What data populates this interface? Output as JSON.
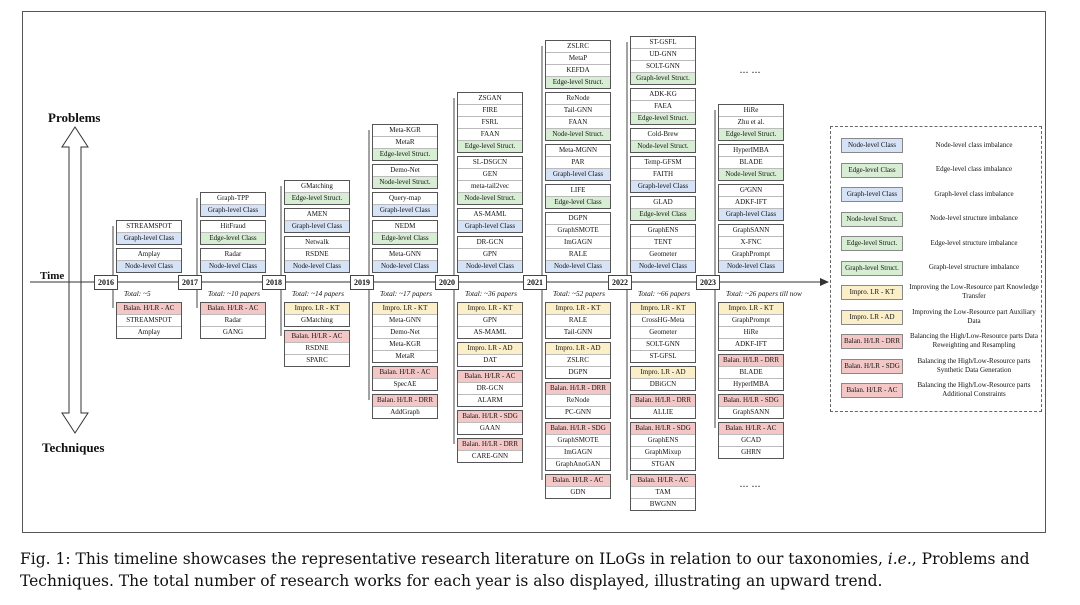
{
  "labels": {
    "problems": "Problems",
    "techniques": "Techniques",
    "time": "Time"
  },
  "caption": {
    "part1": "Fig. 1: This timeline showcases the representative research literature on ILoGs in relation to our taxonomies, ",
    "ie": "i.e.",
    "part2": ", Problems and Techniques. The total number of research works for each year is also displayed, illustrating an upward trend."
  },
  "ellipsis": "... ...",
  "years": [
    {
      "year": "2016",
      "total": "Total: ~5",
      "problems": [
        {
          "type": "graph",
          "label": "Graph-level Class",
          "papers": [
            "STREAMSPOT"
          ]
        },
        {
          "type": "node",
          "label": "Node-level Class",
          "papers": [
            "Amplay"
          ]
        }
      ],
      "techniques": [
        {
          "type": "ac",
          "label": "Balan. H/LR - AC",
          "papers": [
            "STREAMSPOT",
            "Amplay"
          ]
        }
      ]
    },
    {
      "year": "2017",
      "total": "Total: ~10 papers",
      "problems": [
        {
          "type": "graph",
          "label": "Graph-level Class",
          "papers": [
            "Graph-TPP"
          ]
        },
        {
          "type": "edge",
          "label": "Edge-level Class",
          "papers": [
            "HitFraud"
          ]
        },
        {
          "type": "node",
          "label": "Node-level Class",
          "papers": [
            "Radar"
          ]
        }
      ],
      "techniques": [
        {
          "type": "ac",
          "label": "Balan. H/LR - AC",
          "papers": [
            "Radar",
            "GANG"
          ]
        }
      ]
    },
    {
      "year": "2018",
      "total": "Total: ~14 papers",
      "problems": [
        {
          "type": "es",
          "label": "Edge-level Struct.",
          "papers": [
            "GMatching"
          ]
        },
        {
          "type": "graph",
          "label": "Graph-level Class",
          "papers": [
            "AMEN"
          ]
        },
        {
          "type": "node",
          "label": "Node-level Class",
          "papers": [
            "Netwalk",
            "RSDNE"
          ]
        }
      ],
      "techniques": [
        {
          "type": "kt",
          "label": "Impro. LR - KT",
          "papers": [
            "GMatching"
          ]
        },
        {
          "type": "ac",
          "label": "Balan. H/LR - AC",
          "papers": [
            "RSDNE",
            "SPARC"
          ]
        }
      ]
    },
    {
      "year": "2019",
      "total": "Total: ~17 papers",
      "problems": [
        {
          "type": "es",
          "label": "Edge-level Struct.",
          "papers": [
            "Meta-KGR",
            "MetaR"
          ]
        },
        {
          "type": "ns",
          "label": "Node-level Struct.",
          "papers": [
            "Demo-Net"
          ]
        },
        {
          "type": "graph",
          "label": "Graph-level Class",
          "papers": [
            "Query-map"
          ]
        },
        {
          "type": "edge",
          "label": "Edge-level Class",
          "papers": [
            "NEDM"
          ]
        },
        {
          "type": "node",
          "label": "Node-level Class",
          "papers": [
            "Meta-GNN"
          ]
        }
      ],
      "techniques": [
        {
          "type": "kt",
          "label": "Impro. LR - KT",
          "papers": [
            "Meta-GNN",
            "Demo-Net",
            "Meta-KGR",
            "MetaR"
          ]
        },
        {
          "type": "ac",
          "label": "Balan. H/LR - AC",
          "papers": [
            "SpecAE"
          ]
        },
        {
          "type": "drr",
          "label": "Balan. H/LR - DRR",
          "papers": [
            "AddGraph"
          ]
        }
      ]
    },
    {
      "year": "2020",
      "total": "Total: ~36 papers",
      "problems": [
        {
          "type": "es",
          "label": "Edge-level Struct.",
          "papers": [
            "ZSGAN",
            "FIRE",
            "FSRL",
            "FAAN"
          ]
        },
        {
          "type": "ns",
          "label": "Node-level Struct.",
          "papers": [
            "SL-DSGCN",
            "GEN",
            "meta-tail2vec"
          ]
        },
        {
          "type": "graph",
          "label": "Graph-level Class",
          "papers": [
            "AS-MAML"
          ]
        },
        {
          "type": "node",
          "label": "Node-level Class",
          "papers": [
            "DR-GCN",
            "GPN"
          ]
        }
      ],
      "techniques": [
        {
          "type": "kt",
          "label": "Impro. LR - KT",
          "papers": [
            "GPN",
            "AS-MAML"
          ]
        },
        {
          "type": "ad",
          "label": "Impro. LR - AD",
          "papers": [
            "DAT"
          ]
        },
        {
          "type": "ac",
          "label": "Balan. H/LR - AC",
          "papers": [
            "DR-GCN",
            "ALARM"
          ]
        },
        {
          "type": "sdg",
          "label": "Balan. H/LR - SDG",
          "papers": [
            "GAAN"
          ]
        },
        {
          "type": "drr",
          "label": "Balan. H/LR - DRR",
          "papers": [
            "CARE-GNN"
          ]
        }
      ]
    },
    {
      "year": "2021",
      "total": "Total: ~52 papers",
      "problems": [
        {
          "type": "es",
          "label": "Edge-level Struct.",
          "papers": [
            "ZSLRC",
            "MetaP",
            "KEFDA"
          ]
        },
        {
          "type": "ns",
          "label": "Node-level Struct.",
          "papers": [
            "ReNode",
            "Tail-GNN",
            "FAAN"
          ]
        },
        {
          "type": "graph",
          "label": "Graph-level Class",
          "papers": [
            "Meta-MGNN",
            "PAR"
          ]
        },
        {
          "type": "edge",
          "label": "Edge-level Class",
          "papers": [
            "LIFE"
          ]
        },
        {
          "type": "node",
          "label": "Node-level Class",
          "papers": [
            "DGPN",
            "GraphSMOTE",
            "ImGAGN",
            "RALE"
          ]
        }
      ],
      "techniques": [
        {
          "type": "kt",
          "label": "Impro. LR - KT",
          "papers": [
            "RALE",
            "Tail-GNN"
          ]
        },
        {
          "type": "ad",
          "label": "Impro. LR - AD",
          "papers": [
            "ZSLRC",
            "DGPN"
          ]
        },
        {
          "type": "drr",
          "label": "Balan. H/LR - DRR",
          "papers": [
            "ReNode",
            "PC-GNN"
          ]
        },
        {
          "type": "sdg",
          "label": "Balan. H/LR - SDG",
          "papers": [
            "GraphSMOTE",
            "ImGAGN",
            "GraphAnoGAN"
          ]
        },
        {
          "type": "ac",
          "label": "Balan. H/LR - AC",
          "papers": [
            "GDN"
          ]
        }
      ]
    },
    {
      "year": "2022",
      "total": "Total: ~66 papers",
      "problems": [
        {
          "type": "gs",
          "label": "Graph-level Struct.",
          "papers": [
            "ST-GSFL",
            "UD-GNN",
            "SOLT-GNN"
          ]
        },
        {
          "type": "es",
          "label": "Edge-level Struct.",
          "papers": [
            "ADK-KG",
            "FAEA"
          ]
        },
        {
          "type": "ns",
          "label": "Node-level Struct.",
          "papers": [
            "Cold-Brew"
          ]
        },
        {
          "type": "graph",
          "label": "Graph-level Class",
          "papers": [
            "Temp-GFSM",
            "FAITH"
          ]
        },
        {
          "type": "edge",
          "label": "Edge-level Class",
          "papers": [
            "GLAD"
          ]
        },
        {
          "type": "node",
          "label": "Node-level Class",
          "papers": [
            "GraphENS",
            "TENT",
            "Geometer"
          ]
        }
      ],
      "techniques": [
        {
          "type": "kt",
          "label": "Impro. LR - KT",
          "papers": [
            "CrossHG-Meta",
            "Geometer",
            "SOLT-GNN",
            "ST-GFSL"
          ]
        },
        {
          "type": "ad",
          "label": "Impro. LR - AD",
          "papers": [
            "DBiGCN"
          ]
        },
        {
          "type": "drr",
          "label": "Balan. H/LR - DRR",
          "papers": [
            "ALLIE"
          ]
        },
        {
          "type": "sdg",
          "label": "Balan. H/LR - SDG",
          "papers": [
            "GraphENS",
            "GraphMixup",
            "STGAN"
          ]
        },
        {
          "type": "ac",
          "label": "Balan. H/LR - AC",
          "papers": [
            "TAM",
            "BWGNN"
          ]
        }
      ]
    },
    {
      "year": "2023",
      "total": "Total: ~26 papers till now",
      "problems": [
        {
          "type": "es",
          "label": "Edge-level Struct.",
          "papers": [
            "HiRe",
            "Zhu et al."
          ]
        },
        {
          "type": "ns",
          "label": "Node-level Struct.",
          "papers": [
            "HyperIMBA",
            "BLADE"
          ]
        },
        {
          "type": "graph",
          "label": "Graph-level Class",
          "papers": [
            "G²GNN",
            "ADKF-IFT"
          ]
        },
        {
          "type": "node",
          "label": "Node-level Class",
          "papers": [
            "GraphSANN",
            "X-FNC",
            "GraphPrompt"
          ]
        }
      ],
      "techniques": [
        {
          "type": "kt",
          "label": "Impro. LR - KT",
          "papers": [
            "GraphPrompt",
            "HiRe",
            "ADKF-IFT"
          ]
        },
        {
          "type": "drr",
          "label": "Balan. H/LR - DRR",
          "papers": [
            "BLADE",
            "HyperIMBA"
          ]
        },
        {
          "type": "sdg",
          "label": "Balan. H/LR - SDG",
          "papers": [
            "GraphSANN"
          ]
        },
        {
          "type": "ac",
          "label": "Balan. H/LR - AC",
          "papers": [
            "GCAD",
            "GHRN"
          ]
        }
      ]
    }
  ],
  "legend": [
    {
      "type": "node",
      "label": "Node-level Class",
      "desc": "Node-level class imbalance"
    },
    {
      "type": "edge",
      "label": "Edge-level Class",
      "desc": "Edge-level class imbalance"
    },
    {
      "type": "graph",
      "label": "Graph-level Class",
      "desc": "Graph-level class imbalance"
    },
    {
      "type": "ns",
      "label": "Node-level Struct.",
      "desc": "Node-level structure imbalance"
    },
    {
      "type": "es",
      "label": "Edge-level Struct.",
      "desc": "Edge-level structure imbalance"
    },
    {
      "type": "gs",
      "label": "Graph-level Struct.",
      "desc": "Graph-level structure imbalance"
    },
    {
      "type": "kt",
      "label": "Impro. LR - KT",
      "desc": "Improving the Low-Resource part Knowledge Transfer"
    },
    {
      "type": "ad",
      "label": "Impro. LR - AD",
      "desc": "Improving the Low-Resource part Auxiliary Data"
    },
    {
      "type": "drr",
      "label": "Balan. H/LR - DRR",
      "desc": "Balancing the High/Low-Resource parts Data Reweighting and Resampling"
    },
    {
      "type": "sdg",
      "label": "Balan. H/LR - SDG",
      "desc": "Balancing the High/Low-Resource parts Synthetic Data Generation"
    },
    {
      "type": "ac",
      "label": "Balan. H/LR - AC",
      "desc": "Balancing the High/Low-Resource parts Additional Constraints"
    }
  ]
}
